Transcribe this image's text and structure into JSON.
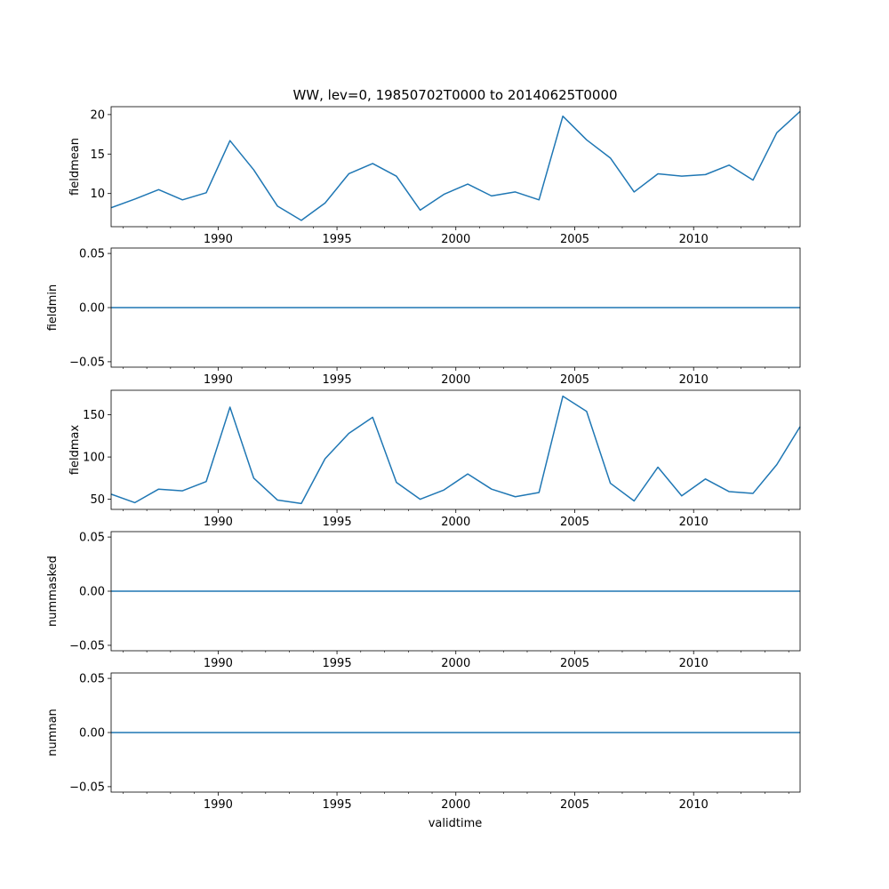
{
  "figure": {
    "title": "WW, lev=0, 19850702T0000 to 20140625T0000",
    "xlabel": "validtime"
  },
  "colors": {
    "line": "#1f77b4",
    "axis": "#000000",
    "background": "#ffffff"
  },
  "chart_data": [
    {
      "type": "line",
      "ylabel": "fieldmean",
      "x": [
        "1985-07-02",
        "1986-07-02",
        "1987-07-02",
        "1988-07-02",
        "1989-07-02",
        "1990-07-02",
        "1991-07-02",
        "1992-07-02",
        "1993-07-02",
        "1994-07-02",
        "1995-07-02",
        "1996-07-02",
        "1997-07-02",
        "1998-07-02",
        "1999-07-02",
        "2000-07-02",
        "2001-07-02",
        "2002-07-02",
        "2003-07-02",
        "2004-07-02",
        "2005-07-02",
        "2006-07-02",
        "2007-07-02",
        "2008-07-02",
        "2009-07-02",
        "2010-07-02",
        "2011-07-02",
        "2012-07-02",
        "2013-07-02",
        "2014-06-25"
      ],
      "values": [
        8.2,
        9.3,
        10.5,
        9.2,
        10.1,
        16.7,
        13.0,
        8.4,
        6.6,
        8.8,
        12.5,
        13.8,
        12.2,
        7.9,
        9.9,
        11.2,
        9.7,
        10.2,
        9.2,
        19.8,
        16.8,
        14.5,
        10.2,
        12.5,
        12.2,
        12.4,
        13.6,
        11.7,
        17.7,
        20.4
      ],
      "ylim": [
        5.8,
        21.0
      ],
      "yticks": [
        "10",
        "15",
        "20"
      ],
      "ytick_values": [
        10,
        15,
        20
      ]
    },
    {
      "type": "line",
      "ylabel": "fieldmin",
      "x": [
        "1985-07-02",
        "2014-06-25"
      ],
      "values": [
        0,
        0
      ],
      "ylim": [
        -0.055,
        0.055
      ],
      "yticks": [
        "−0.05",
        "0.00",
        "0.05"
      ],
      "ytick_values": [
        -0.05,
        0,
        0.05
      ]
    },
    {
      "type": "line",
      "ylabel": "fieldmax",
      "x": [
        "1985-07-02",
        "1986-07-02",
        "1987-07-02",
        "1988-07-02",
        "1989-07-02",
        "1990-07-02",
        "1991-07-02",
        "1992-07-02",
        "1993-07-02",
        "1994-07-02",
        "1995-07-02",
        "1996-07-02",
        "1997-07-02",
        "1998-07-02",
        "1999-07-02",
        "2000-07-02",
        "2001-07-02",
        "2002-07-02",
        "2003-07-02",
        "2004-07-02",
        "2005-07-02",
        "2006-07-02",
        "2007-07-02",
        "2008-07-02",
        "2009-07-02",
        "2010-07-02",
        "2011-07-02",
        "2012-07-02",
        "2013-07-02",
        "2014-06-25"
      ],
      "values": [
        56,
        46,
        62,
        60,
        71,
        159,
        75,
        49,
        45,
        98,
        128,
        147,
        70,
        50,
        61,
        80,
        62,
        53,
        58,
        172,
        154,
        69,
        48,
        88,
        54,
        74,
        59,
        57,
        91,
        136
      ],
      "ylim": [
        38,
        179
      ],
      "yticks": [
        "50",
        "100",
        "150"
      ],
      "ytick_values": [
        50,
        100,
        150
      ]
    },
    {
      "type": "line",
      "ylabel": "nummasked",
      "x": [
        "1985-07-02",
        "2014-06-25"
      ],
      "values": [
        0,
        0
      ],
      "ylim": [
        -0.055,
        0.055
      ],
      "yticks": [
        "−0.05",
        "0.00",
        "0.05"
      ],
      "ytick_values": [
        -0.05,
        0,
        0.05
      ]
    },
    {
      "type": "line",
      "ylabel": "numnan",
      "x": [
        "1985-07-02",
        "2014-06-25"
      ],
      "values": [
        0,
        0
      ],
      "ylim": [
        -0.055,
        0.055
      ],
      "yticks": [
        "−0.05",
        "0.00",
        "0.05"
      ],
      "ytick_values": [
        -0.05,
        0,
        0.05
      ]
    }
  ],
  "xaxis": {
    "range": [
      "1985-07-02",
      "2014-06-25"
    ],
    "major_ticks": [
      "1990",
      "1995",
      "2000",
      "2005",
      "2010"
    ],
    "minor_ticks": [
      "1986",
      "1987",
      "1988",
      "1989",
      "1991",
      "1992",
      "1993",
      "1994",
      "1996",
      "1997",
      "1998",
      "1999",
      "2001",
      "2002",
      "2003",
      "2004",
      "2006",
      "2007",
      "2008",
      "2009",
      "2011",
      "2012",
      "2013",
      "2014"
    ]
  }
}
